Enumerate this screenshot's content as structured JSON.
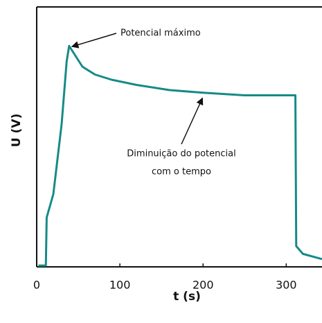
{
  "chart_data": {
    "type": "line",
    "x_label": "t (s)",
    "y_label": "U (V)",
    "x": [
      2,
      11,
      12,
      20,
      30,
      36,
      39,
      45,
      55,
      70,
      90,
      120,
      160,
      200,
      250,
      311,
      312,
      320,
      343
    ],
    "series": [
      {
        "color": "#168a88",
        "values": [
          0.5,
          0.5,
          19,
          28,
          55,
          79,
          85,
          82,
          77,
          74,
          72,
          70,
          68,
          67,
          66,
          66,
          8,
          5,
          3
        ]
      }
    ],
    "xlim": [
      0,
      343
    ],
    "ylim": [
      0,
      100
    ],
    "xticks": [
      0,
      100,
      200,
      300
    ],
    "annotations": [
      {
        "lines": [
          "Potencial máximo"
        ],
        "x": 39,
        "y": 85
      },
      {
        "lines": [
          "Diminuição do potencial",
          "com o tempo"
        ],
        "x": 156,
        "y": 66
      }
    ]
  }
}
